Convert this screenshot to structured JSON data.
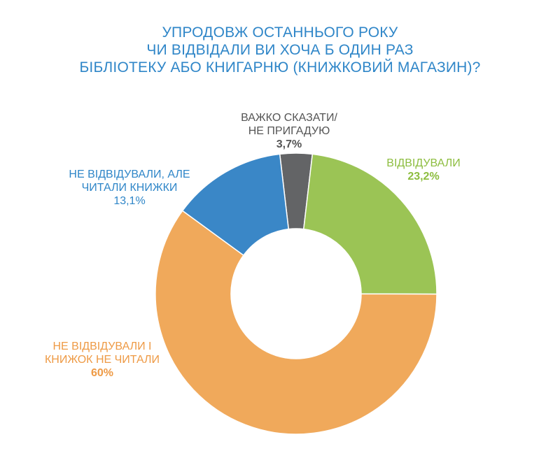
{
  "title_lines": [
    "УПРОДОВЖ ОСТАННЬОГО РОКУ",
    "ЧИ ВІДВІДАЛИ ВИ ХОЧА Б ОДИН РАЗ",
    "БІБЛІОТЕКУ АБО КНИГАРНЮ (КНИЖКОВИЙ МАГАЗИН)?"
  ],
  "chart_data": {
    "type": "pie",
    "donut": true,
    "title": "УПРОДОВЖ ОСТАННЬОГО РОКУ ЧИ ВІДВІДАЛИ ВИ ХОЧА Б ОДИН РАЗ БІБЛІОТЕКУ АБО КНИГАРНЮ (КНИЖКОВИЙ МАГАЗИН)?",
    "slices": [
      {
        "label_lines": [
          "ВАЖКО СКАЗАТИ/",
          "НЕ ПРИГАДУЮ"
        ],
        "value": 3.7,
        "value_label": "3,7%",
        "color": "#636466"
      },
      {
        "label_lines": [
          "ВІДВІДУВАЛИ"
        ],
        "value": 23.2,
        "value_label": "23,2%",
        "color": "#9BC455"
      },
      {
        "label_lines": [
          "НЕ ВІДВІДУВАЛИ І",
          "КНИЖОК НЕ ЧИТАЛИ"
        ],
        "value": 60,
        "value_label": "60%",
        "color": "#F0A95B"
      },
      {
        "label_lines": [
          "НЕ ВІДВІДУВАЛИ, АЛЕ",
          "ЧИТАЛИ КНИЖКИ"
        ],
        "value": 13.1,
        "value_label": "13,1%",
        "color": "#3A87C7"
      }
    ]
  },
  "label_colors": {
    "slice_0": "#555555",
    "slice_1": "#8DBD3F",
    "slice_2": "#EE9A45",
    "slice_3": "#2F86C8"
  }
}
